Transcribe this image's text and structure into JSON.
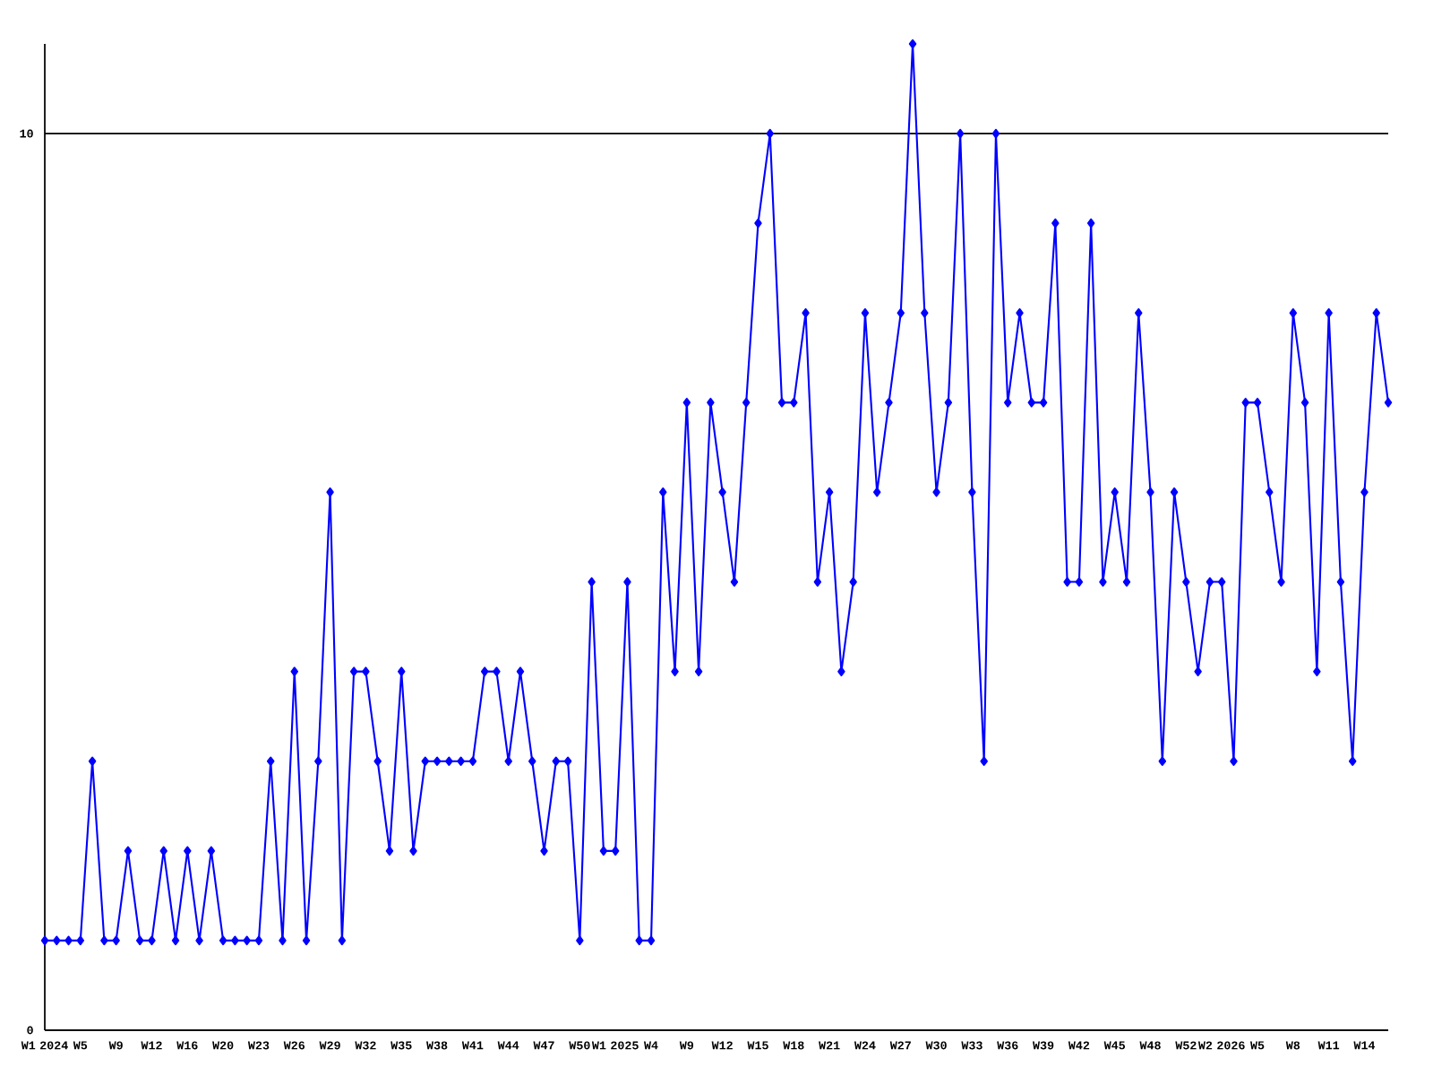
{
  "chart_data": {
    "type": "line",
    "color": "#0000ff",
    "marker": "diamond",
    "grid": "y",
    "ylim": [
      0,
      11
    ],
    "yticks": [
      0,
      10
    ],
    "categories": [
      "W1 2024",
      null,
      null,
      "W5",
      null,
      null,
      "W9",
      null,
      null,
      "W12",
      null,
      null,
      "W16",
      null,
      null,
      "W20",
      null,
      null,
      "W23",
      null,
      null,
      "W26",
      null,
      null,
      "W29",
      null,
      null,
      "W32",
      null,
      null,
      "W35",
      null,
      null,
      "W38",
      null,
      null,
      "W41",
      null,
      null,
      "W44",
      null,
      null,
      "W47",
      null,
      null,
      "W50",
      null,
      null,
      "W1 2025",
      null,
      null,
      "W4",
      null,
      null,
      "W9",
      null,
      null,
      "W12",
      null,
      null,
      "W15",
      null,
      null,
      "W18",
      null,
      null,
      "W21",
      null,
      null,
      "W24",
      null,
      null,
      "W27",
      null,
      null,
      "W30",
      null,
      null,
      "W33",
      null,
      null,
      "W36",
      null,
      null,
      "W39",
      null,
      null,
      "W42",
      null,
      null,
      "W45",
      null,
      null,
      "W48",
      null,
      null,
      "W52",
      null,
      null,
      "W2 2026",
      null,
      null,
      "W5",
      null,
      null,
      "W8",
      null,
      null,
      "W11",
      null,
      null,
      "W14",
      null,
      null
    ],
    "values": [
      1,
      1,
      1,
      1,
      3,
      1,
      1,
      2,
      1,
      1,
      2,
      1,
      2,
      1,
      2,
      1,
      1,
      1,
      1,
      3,
      1,
      4,
      1,
      3,
      6,
      1,
      4,
      4,
      3,
      2,
      4,
      2,
      3,
      3,
      3,
      3,
      3,
      4,
      4,
      3,
      4,
      3,
      2,
      3,
      3,
      1,
      5,
      2,
      2,
      5,
      1,
      1,
      6,
      4,
      7,
      4,
      7,
      6,
      5,
      7,
      9,
      10,
      7,
      7,
      8,
      5,
      6,
      4,
      5,
      8,
      6,
      7,
      8,
      11,
      8,
      6,
      7,
      10,
      6,
      3,
      10,
      7,
      8,
      7,
      7,
      9,
      5,
      5,
      9,
      5,
      6,
      5,
      8,
      6,
      3,
      6,
      5,
      4,
      5,
      5,
      3,
      7,
      7,
      6,
      5,
      8,
      7,
      4,
      8,
      5,
      3,
      6,
      8,
      7
    ]
  }
}
